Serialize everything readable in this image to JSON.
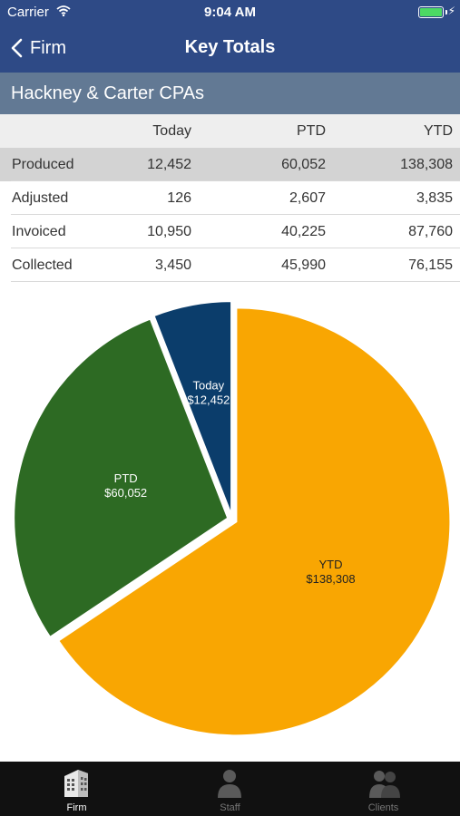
{
  "status": {
    "carrier": "Carrier",
    "time": "9:04 AM"
  },
  "nav": {
    "back_label": "Firm",
    "title": "Key Totals"
  },
  "firm_name": "Hackney & Carter CPAs",
  "table": {
    "columns": [
      "",
      "Today",
      "PTD",
      "YTD"
    ],
    "rows": [
      {
        "label": "Produced",
        "today": "12,452",
        "ptd": "60,052",
        "ytd": "138,308"
      },
      {
        "label": "Adjusted",
        "today": "126",
        "ptd": "2,607",
        "ytd": "3,835"
      },
      {
        "label": "Invoiced",
        "today": "10,950",
        "ptd": "40,225",
        "ytd": "87,760"
      },
      {
        "label": "Collected",
        "today": "3,450",
        "ptd": "45,990",
        "ytd": "76,155"
      }
    ]
  },
  "chart_data": {
    "type": "pie",
    "slices": [
      {
        "name": "Today",
        "label": "$12,452",
        "value": 12452,
        "color": "#0b3d6b"
      },
      {
        "name": "PTD",
        "label": "$60,052",
        "value": 60052,
        "color": "#2d6a23"
      },
      {
        "name": "YTD",
        "label": "$138,308",
        "value": 138308,
        "color": "#f9a602"
      }
    ]
  },
  "tabs": [
    {
      "label": "Firm",
      "icon": "building-icon",
      "active": true
    },
    {
      "label": "Staff",
      "icon": "person-icon",
      "active": false
    },
    {
      "label": "Clients",
      "icon": "people-icon",
      "active": false
    }
  ]
}
